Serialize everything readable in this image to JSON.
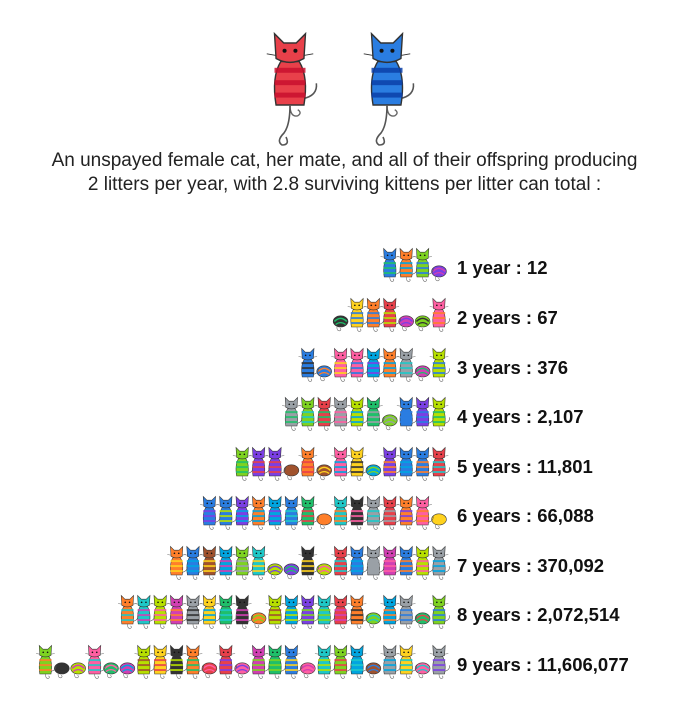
{
  "headline": {
    "line1": "An unspayed female cat, her mate, and all of their offspring producing",
    "line2": "2 litters per year, with 2.8 surviving kittens per litter can total :"
  },
  "parents": [
    {
      "name": "female-cat",
      "color": "#e8404a",
      "stripe": "#c8102e"
    },
    {
      "name": "male-cat",
      "color": "#2a7de1",
      "stripe": "#0a3fa8"
    }
  ],
  "years": [
    {
      "label": "1 year : 12",
      "years": 1,
      "total": 12
    },
    {
      "label": "2 years : 67",
      "years": 2,
      "total": 67
    },
    {
      "label": "3 years : 376",
      "years": 3,
      "total": 376
    },
    {
      "label": "4 years : 2,107",
      "years": 4,
      "total": 2107
    },
    {
      "label": "5 years : 11,801",
      "years": 5,
      "total": 11801
    },
    {
      "label": "6 years : 66,088",
      "years": 6,
      "total": 66088
    },
    {
      "label": "7 years : 370,092",
      "years": 7,
      "total": 370092
    },
    {
      "label": "8 years : 2,072,514",
      "years": 8,
      "total": 2072514
    },
    {
      "label": "9 years : 11,606,077",
      "years": 9,
      "total": 11606077
    }
  ],
  "palette": [
    "#e8404a",
    "#ff7f2a",
    "#ffd21f",
    "#7ed321",
    "#1fbf6a",
    "#1ec8c8",
    "#2a7de1",
    "#7b3fe4",
    "#d23fb3",
    "#ff5fa2",
    "#333333",
    "#9aa0a6",
    "#a0522d",
    "#00a5e0",
    "#b7e000"
  ]
}
